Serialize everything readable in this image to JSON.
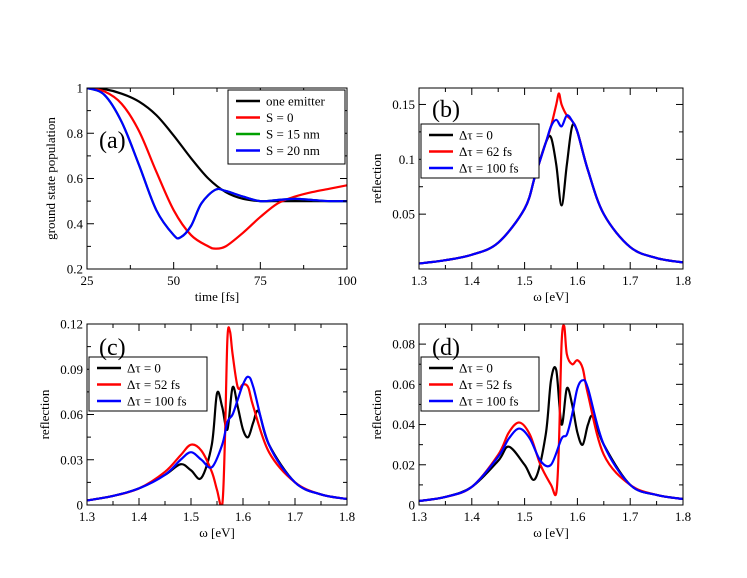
{
  "chart_data": [
    {
      "id": "a",
      "type": "line",
      "panel_label": "(a)",
      "xlabel": "time [fs]",
      "ylabel": "ground state population",
      "xlim": [
        25,
        100
      ],
      "ylim": [
        0.2,
        1.0
      ],
      "xticks": [
        25,
        50,
        75,
        100
      ],
      "yticks": [
        0.2,
        0.4,
        0.6,
        0.8,
        1.0
      ],
      "ytick_labels": [
        "0.2",
        "0.4",
        "0.6",
        "0.8",
        "1"
      ],
      "legend_position": "top-right",
      "series": [
        {
          "name": "one emitter",
          "color": "#000000",
          "x": [
            25,
            30,
            35,
            40,
            45,
            50,
            55,
            60,
            65,
            70,
            75,
            80,
            85,
            90,
            95,
            100
          ],
          "y": [
            1.0,
            0.995,
            0.975,
            0.94,
            0.88,
            0.79,
            0.69,
            0.6,
            0.54,
            0.51,
            0.5,
            0.5,
            0.5,
            0.5,
            0.5,
            0.5
          ]
        },
        {
          "name": "S = 0",
          "color": "#ff0000",
          "x": [
            25,
            30,
            35,
            40,
            45,
            50,
            55,
            60,
            62,
            65,
            70,
            75,
            80,
            85,
            90,
            95,
            100
          ],
          "y": [
            1.0,
            0.985,
            0.93,
            0.81,
            0.63,
            0.46,
            0.35,
            0.3,
            0.29,
            0.3,
            0.36,
            0.43,
            0.49,
            0.52,
            0.54,
            0.555,
            0.57
          ]
        },
        {
          "name": "S = 15 nm",
          "color": "#00a000",
          "x": [
            25,
            30,
            35,
            40,
            45,
            50,
            52,
            55,
            58,
            62,
            65,
            70,
            75,
            80,
            85,
            90,
            95,
            100
          ],
          "y": [
            1.0,
            0.97,
            0.85,
            0.66,
            0.46,
            0.35,
            0.34,
            0.39,
            0.49,
            0.55,
            0.545,
            0.52,
            0.5,
            0.505,
            0.51,
            0.505,
            0.5,
            0.5
          ]
        },
        {
          "name": "S = 20 nm",
          "color": "#0000ff",
          "x": [
            25,
            30,
            35,
            40,
            45,
            50,
            52,
            55,
            58,
            62,
            65,
            70,
            75,
            80,
            85,
            90,
            95,
            100
          ],
          "y": [
            1.0,
            0.97,
            0.85,
            0.66,
            0.46,
            0.35,
            0.34,
            0.39,
            0.49,
            0.55,
            0.545,
            0.52,
            0.5,
            0.505,
            0.51,
            0.505,
            0.5,
            0.5
          ]
        }
      ]
    },
    {
      "id": "b",
      "type": "line",
      "panel_label": "(b)",
      "xlabel": "ω [eV]",
      "ylabel": "reflection",
      "xlim": [
        1.3,
        1.8
      ],
      "ylim": [
        0.0,
        0.165
      ],
      "xticks": [
        1.3,
        1.4,
        1.5,
        1.6,
        1.7,
        1.8
      ],
      "yticks": [
        0.05,
        0.1,
        0.15
      ],
      "ytick_labels": [
        "0.05",
        "0.1",
        "0.15"
      ],
      "legend_position": "top-left",
      "series": [
        {
          "name": "Δτ = 0",
          "color": "#000000",
          "x": [
            1.3,
            1.35,
            1.4,
            1.45,
            1.5,
            1.52,
            1.54,
            1.55,
            1.56,
            1.57,
            1.58,
            1.59,
            1.6,
            1.62,
            1.65,
            1.7,
            1.75,
            1.8
          ],
          "y": [
            0.005,
            0.008,
            0.013,
            0.024,
            0.055,
            0.085,
            0.115,
            0.12,
            0.095,
            0.058,
            0.095,
            0.13,
            0.125,
            0.09,
            0.05,
            0.02,
            0.01,
            0.006
          ]
        },
        {
          "name": "Δτ = 62 fs",
          "color": "#ff0000",
          "x": [
            1.3,
            1.35,
            1.4,
            1.45,
            1.5,
            1.52,
            1.54,
            1.55,
            1.56,
            1.565,
            1.57,
            1.58,
            1.59,
            1.6,
            1.62,
            1.65,
            1.7,
            1.75,
            1.8
          ],
          "y": [
            0.005,
            0.008,
            0.013,
            0.024,
            0.055,
            0.085,
            0.115,
            0.13,
            0.15,
            0.16,
            0.15,
            0.14,
            0.135,
            0.125,
            0.09,
            0.05,
            0.02,
            0.01,
            0.006
          ]
        },
        {
          "name": "Δτ = 100 fs",
          "color": "#0000ff",
          "x": [
            1.3,
            1.35,
            1.4,
            1.45,
            1.5,
            1.52,
            1.54,
            1.55,
            1.56,
            1.57,
            1.58,
            1.59,
            1.6,
            1.62,
            1.65,
            1.7,
            1.75,
            1.8
          ],
          "y": [
            0.005,
            0.008,
            0.013,
            0.024,
            0.055,
            0.085,
            0.115,
            0.13,
            0.136,
            0.13,
            0.14,
            0.135,
            0.125,
            0.09,
            0.05,
            0.02,
            0.01,
            0.006
          ]
        }
      ]
    },
    {
      "id": "c",
      "type": "line",
      "panel_label": "(c)",
      "xlabel": "ω [eV]",
      "ylabel": "reflection",
      "xlim": [
        1.3,
        1.8
      ],
      "ylim": [
        0.0,
        0.12
      ],
      "xticks": [
        1.3,
        1.4,
        1.5,
        1.6,
        1.7,
        1.8
      ],
      "yticks": [
        0,
        0.03,
        0.06,
        0.09,
        0.12
      ],
      "ytick_labels": [
        "0",
        "0.03",
        "0.06",
        "0.09",
        "0.12"
      ],
      "legend_position": "top-left",
      "series": [
        {
          "name": "Δτ = 0",
          "color": "#000000",
          "x": [
            1.3,
            1.35,
            1.4,
            1.45,
            1.48,
            1.5,
            1.52,
            1.54,
            1.55,
            1.56,
            1.57,
            1.58,
            1.59,
            1.6,
            1.61,
            1.62,
            1.63,
            1.65,
            1.7,
            1.75,
            1.8
          ],
          "y": [
            0.003,
            0.006,
            0.011,
            0.02,
            0.027,
            0.023,
            0.018,
            0.04,
            0.074,
            0.065,
            0.05,
            0.078,
            0.065,
            0.05,
            0.045,
            0.055,
            0.062,
            0.04,
            0.015,
            0.007,
            0.004
          ]
        },
        {
          "name": "Δτ = 52 fs",
          "color": "#ff0000",
          "x": [
            1.3,
            1.35,
            1.4,
            1.45,
            1.48,
            1.5,
            1.52,
            1.54,
            1.55,
            1.56,
            1.565,
            1.57,
            1.575,
            1.58,
            1.59,
            1.6,
            1.61,
            1.62,
            1.65,
            1.7,
            1.75,
            1.8
          ],
          "y": [
            0.003,
            0.006,
            0.011,
            0.022,
            0.033,
            0.04,
            0.036,
            0.022,
            0.01,
            0.0,
            0.04,
            0.11,
            0.115,
            0.1,
            0.078,
            0.08,
            0.078,
            0.065,
            0.035,
            0.015,
            0.007,
            0.004
          ]
        },
        {
          "name": "Δτ = 100 fs",
          "color": "#0000ff",
          "x": [
            1.3,
            1.35,
            1.4,
            1.45,
            1.48,
            1.5,
            1.52,
            1.54,
            1.56,
            1.57,
            1.58,
            1.59,
            1.6,
            1.61,
            1.62,
            1.65,
            1.7,
            1.75,
            1.8
          ],
          "y": [
            0.003,
            0.006,
            0.011,
            0.02,
            0.03,
            0.035,
            0.03,
            0.025,
            0.04,
            0.055,
            0.06,
            0.07,
            0.08,
            0.085,
            0.078,
            0.04,
            0.015,
            0.007,
            0.004
          ]
        }
      ]
    },
    {
      "id": "d",
      "type": "line",
      "panel_label": "(d)",
      "xlabel": "ω [eV]",
      "ylabel": "reflection",
      "xlim": [
        1.3,
        1.8
      ],
      "ylim": [
        0.0,
        0.09
      ],
      "xticks": [
        1.3,
        1.4,
        1.5,
        1.6,
        1.7,
        1.8
      ],
      "yticks": [
        0,
        0.02,
        0.04,
        0.06,
        0.08
      ],
      "ytick_labels": [
        "0",
        "0.02",
        "0.04",
        "0.06",
        "0.08"
      ],
      "legend_position": "top-left",
      "series": [
        {
          "name": "Δτ = 0",
          "color": "#000000",
          "x": [
            1.3,
            1.35,
            1.4,
            1.45,
            1.47,
            1.5,
            1.52,
            1.54,
            1.55,
            1.56,
            1.57,
            1.58,
            1.59,
            1.6,
            1.61,
            1.62,
            1.63,
            1.65,
            1.7,
            1.75,
            1.8
          ],
          "y": [
            0.002,
            0.004,
            0.009,
            0.022,
            0.029,
            0.02,
            0.013,
            0.035,
            0.062,
            0.067,
            0.04,
            0.058,
            0.05,
            0.036,
            0.03,
            0.04,
            0.044,
            0.03,
            0.01,
            0.005,
            0.003
          ]
        },
        {
          "name": "Δτ = 52 fs",
          "color": "#ff0000",
          "x": [
            1.3,
            1.35,
            1.4,
            1.45,
            1.47,
            1.49,
            1.51,
            1.53,
            1.55,
            1.56,
            1.565,
            1.57,
            1.575,
            1.58,
            1.59,
            1.6,
            1.61,
            1.62,
            1.65,
            1.7,
            1.75,
            1.8
          ],
          "y": [
            0.002,
            0.004,
            0.009,
            0.025,
            0.036,
            0.041,
            0.035,
            0.02,
            0.01,
            0.006,
            0.03,
            0.08,
            0.089,
            0.075,
            0.07,
            0.072,
            0.068,
            0.055,
            0.025,
            0.01,
            0.005,
            0.003
          ]
        },
        {
          "name": "Δτ = 100 fs",
          "color": "#0000ff",
          "x": [
            1.3,
            1.35,
            1.4,
            1.45,
            1.47,
            1.49,
            1.51,
            1.53,
            1.55,
            1.57,
            1.58,
            1.59,
            1.6,
            1.61,
            1.62,
            1.65,
            1.7,
            1.75,
            1.8
          ],
          "y": [
            0.002,
            0.004,
            0.009,
            0.024,
            0.033,
            0.038,
            0.033,
            0.022,
            0.02,
            0.033,
            0.035,
            0.045,
            0.058,
            0.062,
            0.058,
            0.03,
            0.01,
            0.005,
            0.003
          ]
        }
      ]
    }
  ]
}
